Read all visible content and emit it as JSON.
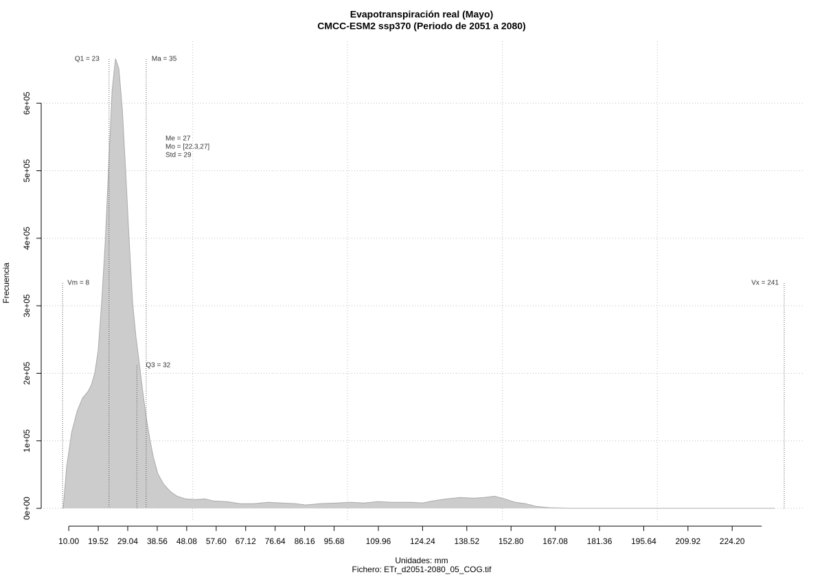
{
  "chart_data": {
    "type": "density",
    "title": "Evapotranspiración real (Mayo)",
    "subtitle": "CMCC-ESM2 ssp370 (Periodo de 2051 a 2080)",
    "xlabel": "Unidades: mm",
    "caption": "Fichero: ETr_d2051-2080_05_COG.tif",
    "ylabel": "Frecuencia",
    "color": "#cccccc",
    "x": [
      8.2,
      9.3,
      10.9,
      12.7,
      14.4,
      16.2,
      17.3,
      18.4,
      19.5,
      20.6,
      21.8,
      22.9,
      24.0,
      25.1,
      26.2,
      27.3,
      28.4,
      29.5,
      30.6,
      31.7,
      32.8,
      33.9,
      35.1,
      36.2,
      37.3,
      38.8,
      40.6,
      42.8,
      45.0,
      47.7,
      51.0,
      53.9,
      56.6,
      61.0,
      65.4,
      69.9,
      74.3,
      78.7,
      83.2,
      86.5,
      91.0,
      96.5,
      100.9,
      105.3,
      109.8,
      114.2,
      120.9,
      124.2,
      127.5,
      132.0,
      136.4,
      140.8,
      144.1,
      147.5,
      150.8,
      154.1,
      157.5,
      160.8,
      165.2,
      171.9,
      237.9
    ],
    "values": [
      0,
      61000,
      112000,
      144000,
      163000,
      173000,
      183000,
      200000,
      234000,
      305000,
      397000,
      509000,
      620000,
      666000,
      651000,
      590000,
      498000,
      397000,
      305000,
      254000,
      214000,
      173000,
      132000,
      102000,
      76000,
      51000,
      36000,
      25000,
      18000,
      14000,
      13000,
      14000,
      11000,
      10000,
      7000,
      7000,
      9000,
      8000,
      7000,
      5000,
      7000,
      8000,
      9000,
      8000,
      10000,
      9000,
      9000,
      8000,
      11000,
      14000,
      16000,
      15000,
      16000,
      18000,
      14000,
      9000,
      7000,
      3000,
      1000,
      0,
      0
    ],
    "xlim": [
      1.1,
      247.2
    ],
    "ylim": [
      -20300,
      691800
    ],
    "xticks": [
      {
        "value": 10,
        "label": "10.00"
      },
      19.52,
      29.04,
      38.56,
      48.08,
      {
        "value": 57.6,
        "label": "57.60"
      },
      67.12,
      76.64,
      86.16,
      95.68,
      109.96,
      124.24,
      138.52,
      {
        "value": 152.8,
        "label": "152.80"
      },
      167.08,
      181.36,
      195.64,
      209.92,
      {
        "value": 224.2,
        "label": "224.20"
      }
    ],
    "yticks": [
      {
        "value": 0,
        "label": "0e+00"
      },
      {
        "value": 100000,
        "label": "1e+05"
      },
      {
        "value": 200000,
        "label": "2e+05"
      },
      {
        "value": 300000,
        "label": "3e+05"
      },
      {
        "value": 400000,
        "label": "4e+05"
      },
      {
        "value": 500000,
        "label": "5e+05"
      },
      {
        "value": 600000,
        "label": "6e+05"
      }
    ],
    "xgrid": [
      50,
      100,
      150,
      200
    ],
    "stats": [
      {
        "label": "Q1 = 23",
        "value": 23
      },
      {
        "label": "Ma = 35",
        "value": 35
      },
      {
        "label": "Q3 = 32",
        "value": 32
      },
      {
        "label": "Vm = 8",
        "value": 8
      },
      {
        "label": "Vx = 241",
        "value": 241
      }
    ],
    "summary": [
      "Me = 27",
      "Mo = [22.3,27]",
      "Std = 29"
    ]
  }
}
